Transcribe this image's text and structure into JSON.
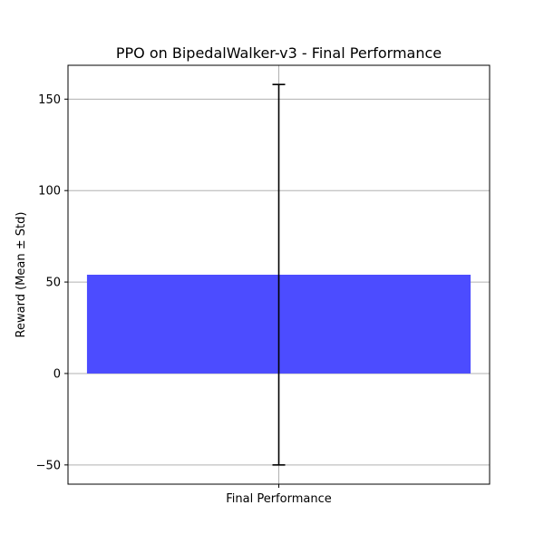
{
  "chart_data": {
    "type": "bar",
    "title": "PPO on BipedalWalker-v3 - Final Performance",
    "xlabel": "",
    "ylabel": "Reward (Mean ± Std)",
    "categories": [
      "Final Performance"
    ],
    "values": [
      54
    ],
    "error": [
      104
    ],
    "ylim": [
      -60.5,
      168.5
    ],
    "yticks": [
      -50,
      0,
      50,
      100,
      150
    ],
    "ytick_labels": [
      "−50",
      "0",
      "50",
      "100",
      "150"
    ],
    "grid": true,
    "bar_color": "#4c4cff",
    "error_color": "#000000"
  }
}
